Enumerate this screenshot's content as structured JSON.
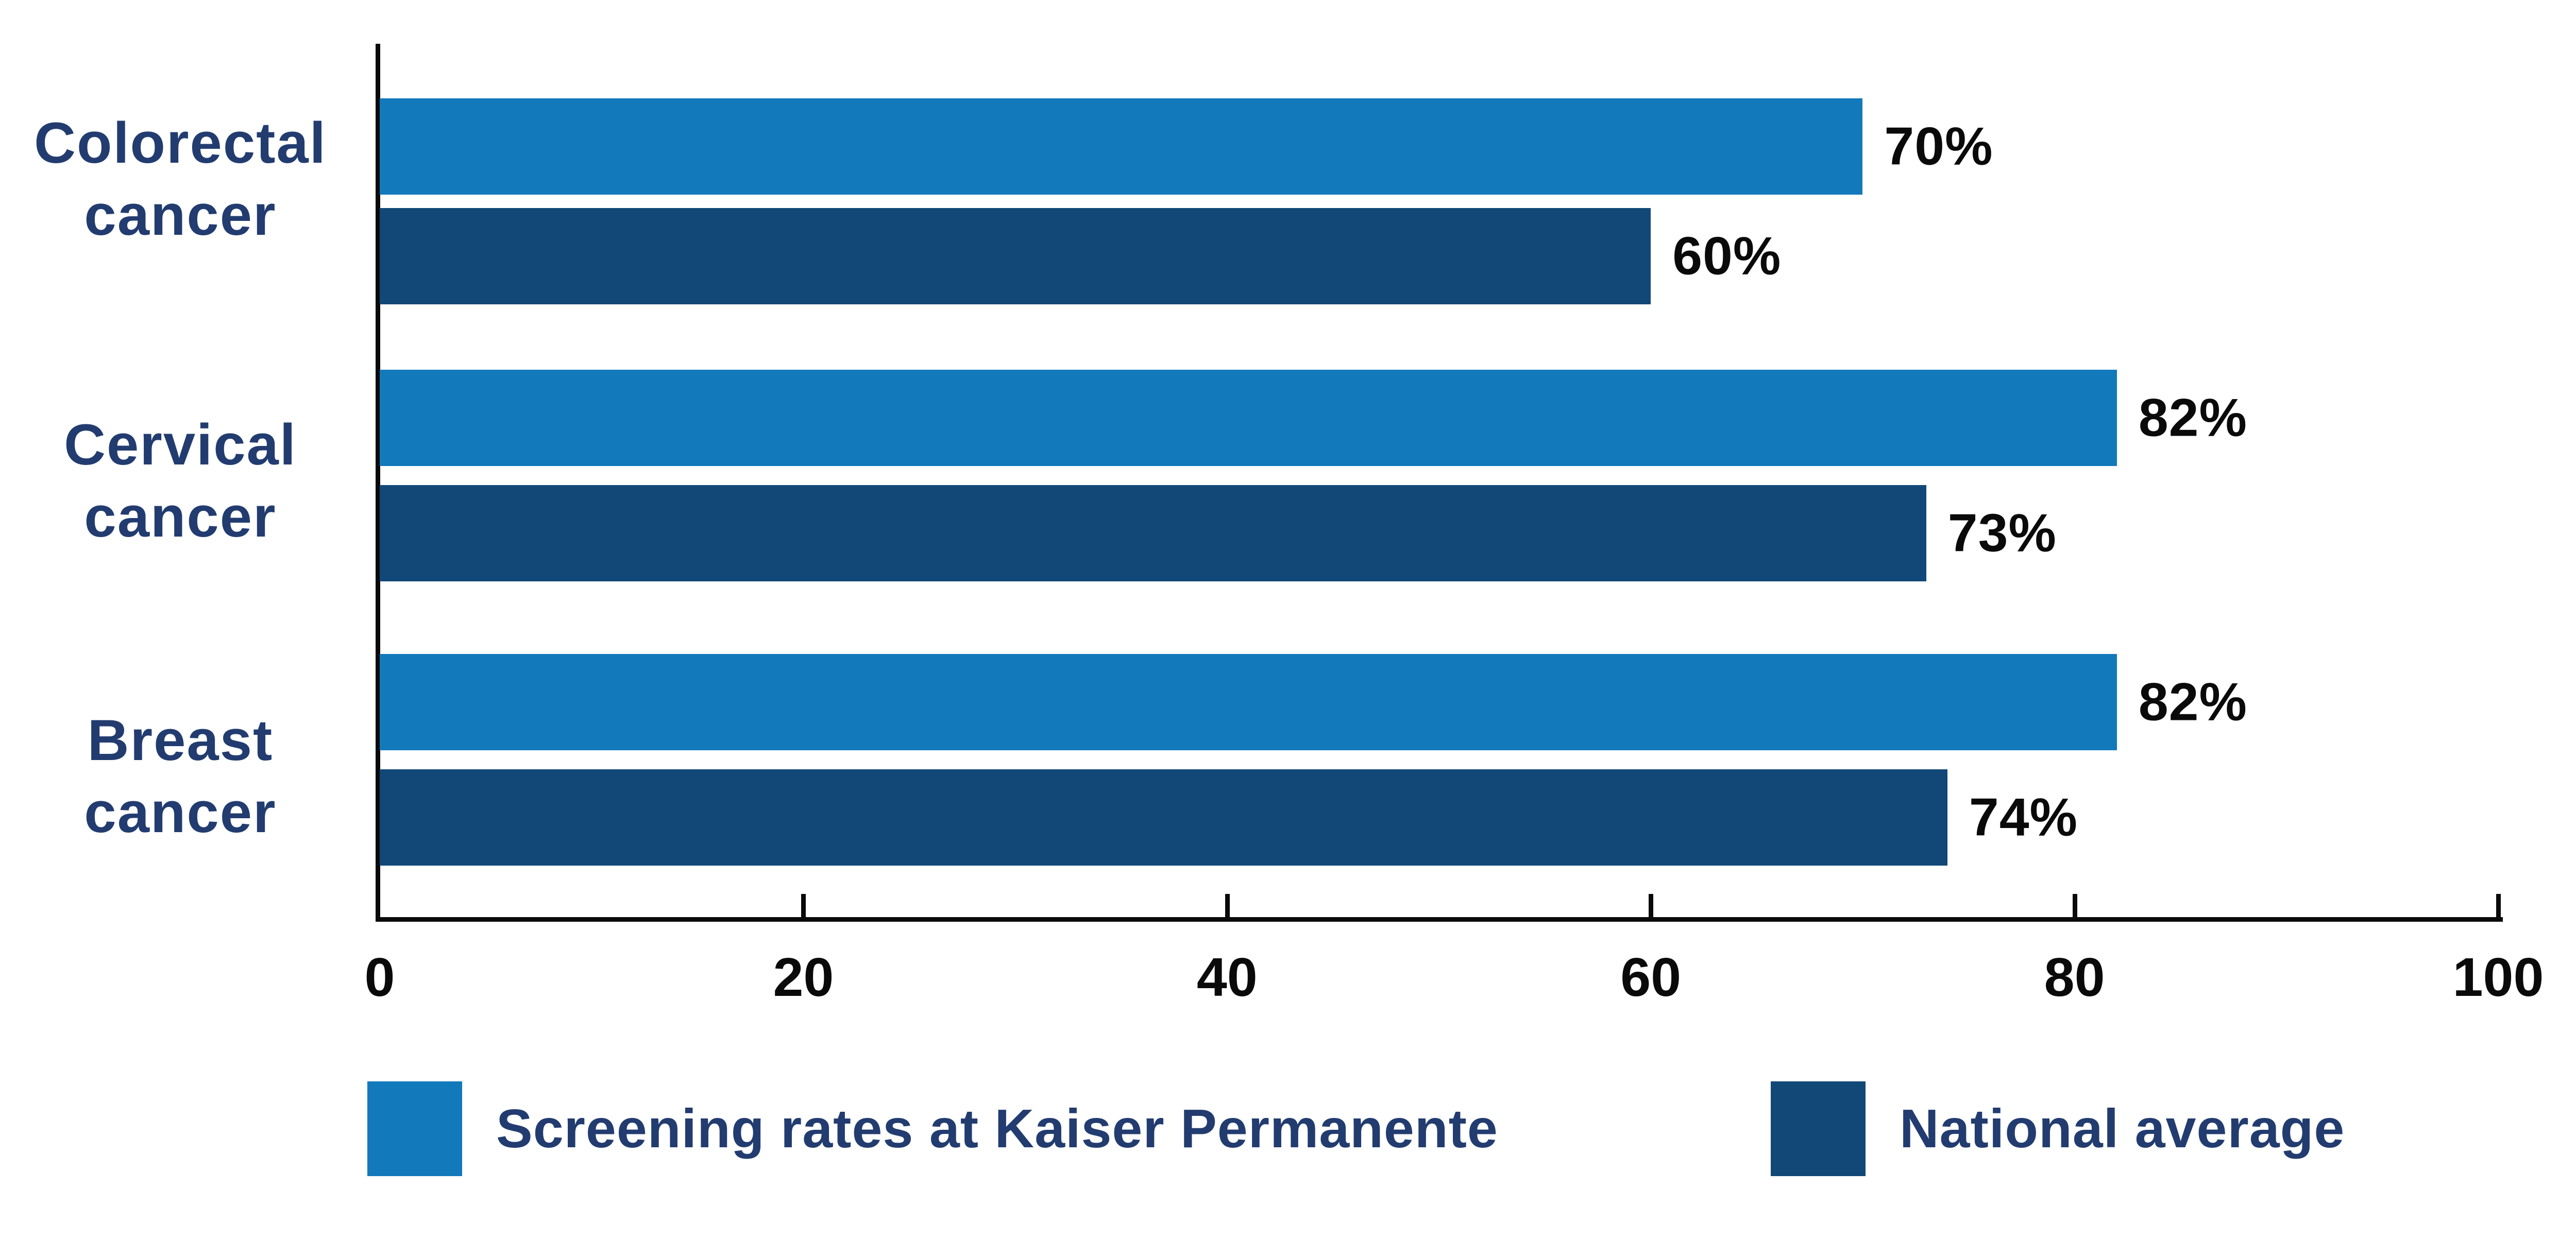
{
  "chart_data": {
    "type": "bar",
    "orientation": "horizontal",
    "categories": [
      "Colorectal cancer",
      "Cervical cancer",
      "Breast cancer"
    ],
    "series": [
      {
        "name": "Screening rates at Kaiser Permanente",
        "color": "#1279BB",
        "values": [
          70,
          82,
          82
        ]
      },
      {
        "name": "National average",
        "color": "#114878",
        "values": [
          60,
          73,
          74
        ]
      }
    ],
    "data_labels": [
      [
        "70%",
        "82%",
        "82%"
      ],
      [
        "60%",
        "73%",
        "74%"
      ]
    ],
    "value_suffix": "%",
    "xlim": [
      0,
      100
    ],
    "x_ticks": [
      0,
      20,
      40,
      60,
      80,
      100
    ],
    "grid": false,
    "legend_position": "bottom"
  },
  "colors": {
    "background": "#FFFFFF",
    "axis": "#0A0A0A",
    "category_label_text": "#223C70",
    "value_label_text": "#0A0A0A",
    "legend_text": "#223C70"
  }
}
